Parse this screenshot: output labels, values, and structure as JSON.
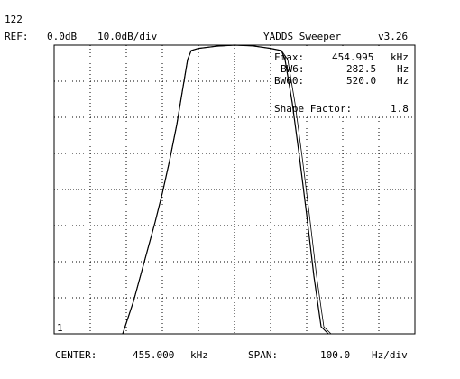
{
  "header": {
    "counter": "122",
    "ref_label": "REF:",
    "ref_value": "0.0dB",
    "scale": "10.0dB/div",
    "app_title": "YADDS Sweeper",
    "version": "v3.26"
  },
  "readout": {
    "fmax_label": "Fmax:",
    "fmax_value": "454.995",
    "fmax_unit": "kHz",
    "bw6_label": "BW6:",
    "bw6_value": "282.5",
    "bw6_unit": "Hz",
    "bw60_label": "BW60:",
    "bw60_value": "520.0",
    "bw60_unit": "Hz",
    "shape_label": "Shape Factor:",
    "shape_value": "1.8"
  },
  "trace_marker": "1",
  "footer": {
    "center_label": "CENTER:",
    "center_value": "455.000",
    "center_unit": "kHz",
    "span_label": "SPAN:",
    "span_value": "100.0",
    "span_unit": "Hz/div"
  },
  "chart_data": {
    "type": "line",
    "grid": true,
    "x_divisions": 10,
    "y_divisions": 8,
    "x_unit": "Hz offset from center",
    "y_unit": "dB",
    "xlim": [
      -500,
      500
    ],
    "ylim": [
      -80,
      0
    ],
    "series": [
      {
        "x": [
          -310,
          -280,
          -250,
          -220,
          -200,
          -180,
          -160,
          -140,
          -130,
          -120,
          -100,
          -50,
          0,
          50,
          100,
          130,
          140,
          150,
          160,
          180,
          200,
          220,
          240,
          260
        ],
        "y": [
          -80,
          -71,
          -60,
          -49,
          -41,
          -32,
          -22,
          -10,
          -4,
          -1.5,
          -0.9,
          -0.3,
          0,
          -0.2,
          -0.9,
          -1.5,
          -4,
          -10,
          -16,
          -31,
          -47,
          -64,
          -78,
          -80
        ]
      }
    ],
    "line_color": "#000000"
  }
}
